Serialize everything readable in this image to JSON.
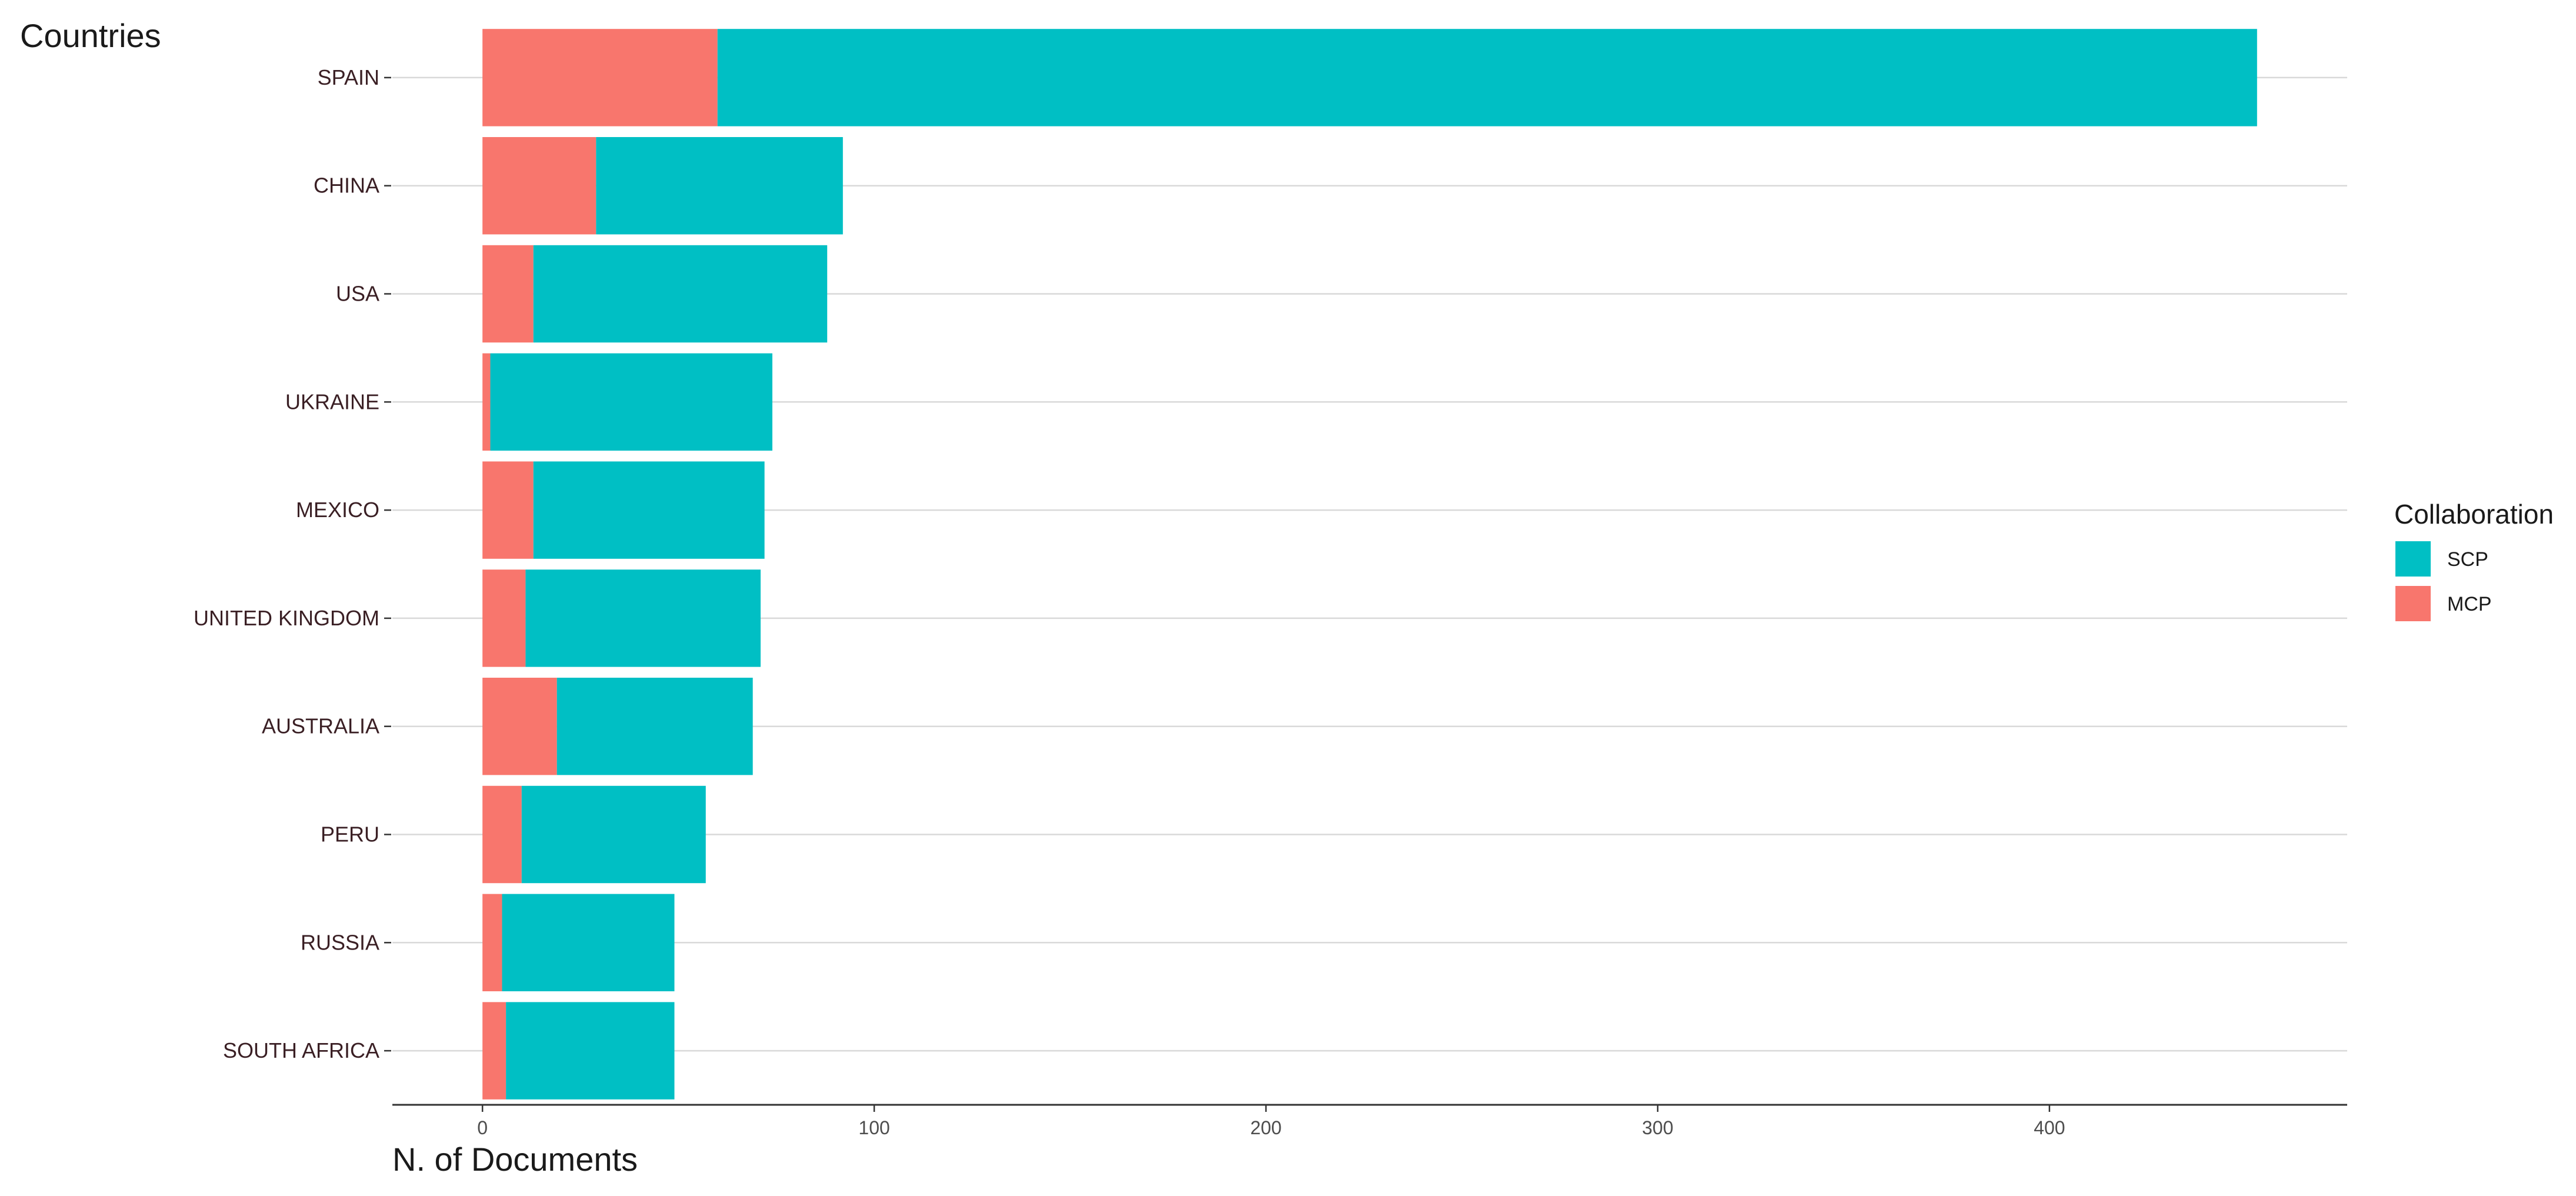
{
  "chart_data": {
    "type": "bar",
    "orientation": "horizontal",
    "stacked": true,
    "ylabel": "Countries",
    "xlabel": "N. of Documents",
    "categories": [
      "SPAIN",
      "CHINA",
      "USA",
      "UKRAINE",
      "MEXICO",
      "UNITED KINGDOM",
      "AUSTRALIA",
      "PERU",
      "RUSSIA",
      "SOUTH AFRICA"
    ],
    "series": [
      {
        "name": "MCP",
        "color": "#F8766D",
        "values": [
          60,
          29,
          13,
          2,
          13,
          11,
          19,
          10,
          5,
          6
        ]
      },
      {
        "name": "SCP",
        "color": "#00BFC4",
        "values": [
          393,
          63,
          75,
          72,
          59,
          60,
          50,
          47,
          44,
          43
        ]
      }
    ],
    "totals": [
      453,
      92,
      88,
      74,
      72,
      71,
      69,
      57,
      49,
      49
    ],
    "xlim": [
      -23,
      476
    ],
    "x_ticks": [
      0,
      100,
      200,
      300,
      400
    ],
    "x_tick_labels": [
      "0",
      "100",
      "200",
      "300",
      "400"
    ],
    "grid": {
      "major_x": false,
      "major_y": true
    },
    "legend": {
      "title": "Collaboration",
      "position": "right",
      "entries": [
        {
          "name": "SCP",
          "color": "#00BFC4"
        },
        {
          "name": "MCP",
          "color": "#F8766D"
        }
      ]
    }
  }
}
